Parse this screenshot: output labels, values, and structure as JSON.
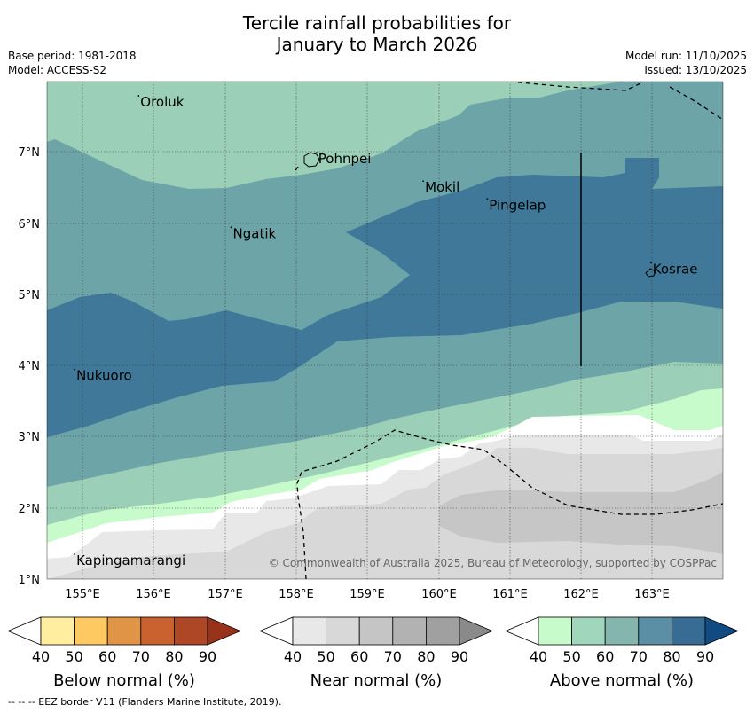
{
  "title": {
    "line1": "Tercile rainfall probabilities for",
    "line2": "January to March 2026"
  },
  "meta": {
    "base_period": "Base period: 1981-2018",
    "model": "Model: ACCESS-S2",
    "model_run": "Model run: 11/10/2025",
    "issued": "Issued: 13/10/2025"
  },
  "map": {
    "lon_range": [
      154.5,
      164.0
    ],
    "lat_range": [
      1.0,
      8.0
    ],
    "lon_ticks": [
      "155°E",
      "156°E",
      "157°E",
      "158°E",
      "159°E",
      "160°E",
      "161°E",
      "162°E",
      "163°E"
    ],
    "lat_ticks": [
      "7°N",
      "6°N",
      "5°N",
      "4°N",
      "3°N",
      "2°N",
      "1°N"
    ],
    "places": [
      {
        "name": "Oroluk",
        "lon": 155.8,
        "lat": 7.65
      },
      {
        "name": "Pohnpei",
        "lon": 158.3,
        "lat": 6.85
      },
      {
        "name": "Mokil",
        "lon": 159.8,
        "lat": 6.45
      },
      {
        "name": "Pingelap",
        "lon": 160.7,
        "lat": 6.2
      },
      {
        "name": "Ngatik",
        "lon": 157.1,
        "lat": 5.8
      },
      {
        "name": "Kosrae",
        "lon": 163.0,
        "lat": 5.3
      },
      {
        "name": "Nukuoro",
        "lon": 154.9,
        "lat": 3.8
      },
      {
        "name": "Kapingamarangi",
        "lon": 154.9,
        "lat": 1.2
      }
    ],
    "copyright": "© Commonwealth of Australia 2025, Bureau of Meteorology, supported by COSPPac"
  },
  "legend": {
    "below": {
      "label": "Below normal (%)",
      "ticks": [
        "40",
        "50",
        "60",
        "70",
        "80",
        "90"
      ],
      "colors": [
        "#ffffff",
        "#ffeda0",
        "#fec961",
        "#e09446",
        "#c9622e",
        "#ae4726",
        "#99321a"
      ]
    },
    "near": {
      "label": "Near normal (%)",
      "ticks": [
        "40",
        "50",
        "60",
        "70",
        "80",
        "90"
      ],
      "colors": [
        "#ffffff",
        "#e8e8e8",
        "#d8d8d8",
        "#c5c5c5",
        "#b2b2b2",
        "#a0a0a0",
        "#8a8a8a"
      ]
    },
    "above": {
      "label": "Above normal (%)",
      "ticks": [
        "40",
        "50",
        "60",
        "70",
        "80",
        "90"
      ],
      "colors": [
        "#ffffff",
        "#c8fbcc",
        "#a0d6bc",
        "#85b6ad",
        "#5a8fa6",
        "#386c94",
        "#124a82"
      ]
    }
  },
  "footnote": "--  --  -- EEZ border V11 (Flanders Marine Institute, 2019)."
}
